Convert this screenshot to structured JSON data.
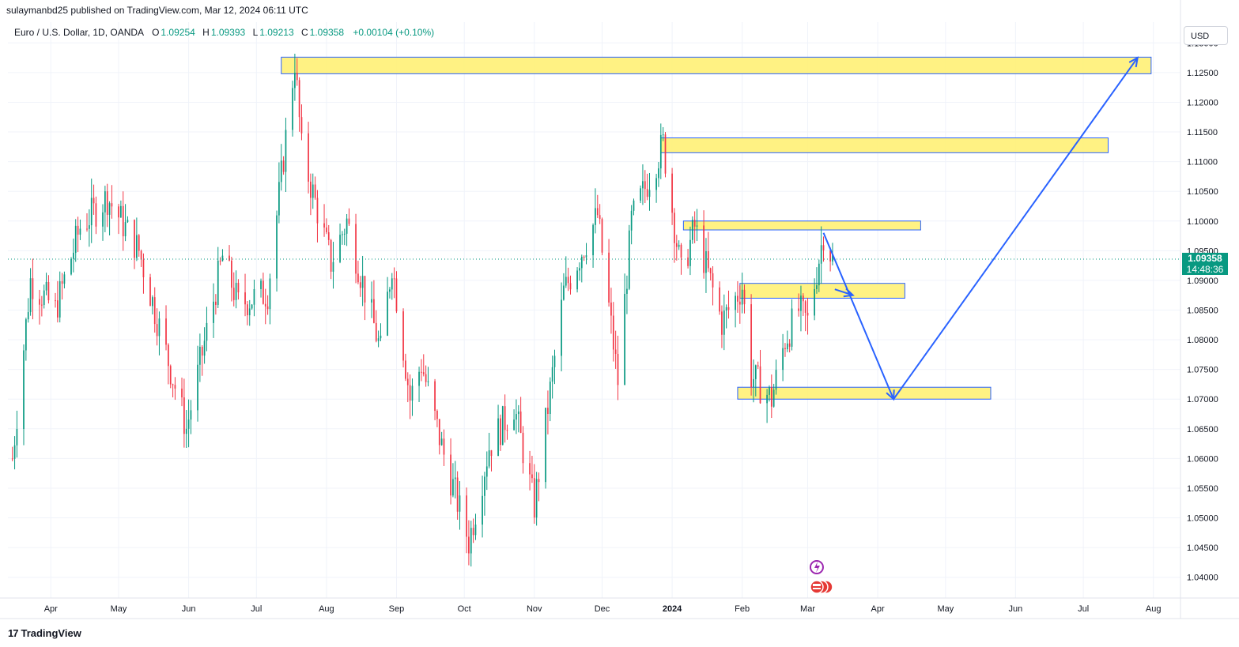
{
  "header": {
    "publisher_line": "sulaymanbd25 published on TradingView.com, Mar 12, 2024 06:11 UTC"
  },
  "legend": {
    "symbol": "Euro / U.S. Dollar, 1D, OANDA",
    "open_label": "O",
    "open": "1.09254",
    "high_label": "H",
    "high": "1.09393",
    "low_label": "L",
    "low": "1.09213",
    "close_label": "C",
    "close": "1.09358",
    "change": "+0.00104 (+0.10%)"
  },
  "currency_button": "USD",
  "price_tag": {
    "price": "1.09358",
    "countdown": "14:48:36"
  },
  "branding": {
    "logo": "17",
    "name": "TradingView"
  },
  "colors": {
    "up": "#089981",
    "down": "#f23645",
    "zone_fill": "#fff176",
    "zone_border": "#2962ff",
    "arrow": "#2962ff",
    "grid": "#f0f3fa",
    "axis_text": "#131722"
  },
  "chart_data": {
    "type": "candlestick",
    "symbol": "EUR/USD",
    "interval": "1D",
    "ylim": [
      1.0365,
      1.1335
    ],
    "y_ticks": [
      "1.13000",
      "1.12500",
      "1.12000",
      "1.11500",
      "1.11000",
      "1.10500",
      "1.10000",
      "1.09500",
      "1.09000",
      "1.08500",
      "1.08000",
      "1.07500",
      "1.07000",
      "1.06500",
      "1.06000",
      "1.05500",
      "1.05000",
      "1.04500",
      "1.04000"
    ],
    "x_ticks": [
      {
        "label": "Apr",
        "date": "2023-04-01"
      },
      {
        "label": "May",
        "date": "2023-05-01"
      },
      {
        "label": "Jun",
        "date": "2023-06-01"
      },
      {
        "label": "Jul",
        "date": "2023-07-01"
      },
      {
        "label": "Aug",
        "date": "2023-08-01"
      },
      {
        "label": "Sep",
        "date": "2023-09-01"
      },
      {
        "label": "Oct",
        "date": "2023-10-01"
      },
      {
        "label": "Nov",
        "date": "2023-11-01"
      },
      {
        "label": "Dec",
        "date": "2023-12-01"
      },
      {
        "label": "2024",
        "date": "2024-01-01",
        "bold": true
      },
      {
        "label": "Feb",
        "date": "2024-02-01"
      },
      {
        "label": "Mar",
        "date": "2024-03-01"
      },
      {
        "label": "Apr",
        "date": "2024-04-01"
      },
      {
        "label": "May",
        "date": "2024-05-01"
      },
      {
        "label": "Jun",
        "date": "2024-06-01"
      },
      {
        "label": "Jul",
        "date": "2024-07-01"
      },
      {
        "label": "Aug",
        "date": "2024-08-01"
      }
    ],
    "last_price": 1.09358,
    "price_path": [
      [
        "2023-03-15",
        1.06
      ],
      [
        "2023-03-23",
        1.09
      ],
      [
        "2023-04-03",
        1.085
      ],
      [
        "2023-04-14",
        1.099
      ],
      [
        "2023-04-26",
        1.104
      ],
      [
        "2023-05-10",
        1.095
      ],
      [
        "2023-05-31",
        1.065
      ],
      [
        "2023-06-16",
        1.094
      ],
      [
        "2023-06-23",
        1.086
      ],
      [
        "2023-07-06",
        1.088
      ],
      [
        "2023-07-18",
        1.127
      ],
      [
        "2023-07-21",
        1.112
      ],
      [
        "2023-08-03",
        1.093
      ],
      [
        "2023-08-10",
        1.1
      ],
      [
        "2023-08-25",
        1.078
      ],
      [
        "2023-08-30",
        1.093
      ],
      [
        "2023-09-07",
        1.07
      ],
      [
        "2023-09-12",
        1.076
      ],
      [
        "2023-09-21",
        1.062
      ],
      [
        "2023-10-03",
        1.046
      ],
      [
        "2023-10-12",
        1.062
      ],
      [
        "2023-10-23",
        1.069
      ],
      [
        "2023-11-01",
        1.052
      ],
      [
        "2023-11-14",
        1.088
      ],
      [
        "2023-11-29",
        1.101
      ],
      [
        "2023-12-08",
        1.073
      ],
      [
        "2023-12-14",
        1.1
      ],
      [
        "2023-12-28",
        1.113
      ],
      [
        "2024-01-05",
        1.091
      ],
      [
        "2024-01-11",
        1.099
      ],
      [
        "2024-01-23",
        1.083
      ],
      [
        "2024-02-01",
        1.089
      ],
      [
        "2024-02-05",
        1.074
      ],
      [
        "2024-02-14",
        1.07
      ],
      [
        "2024-02-20",
        1.08
      ],
      [
        "2024-02-26",
        1.085
      ],
      [
        "2024-03-01",
        1.083
      ],
      [
        "2024-03-08",
        1.098
      ],
      [
        "2024-03-12",
        1.09358
      ]
    ],
    "zones": [
      {
        "start": "2023-07-12",
        "end": "2024-07-31",
        "low": 1.1248,
        "high": 1.1276
      },
      {
        "start": "2023-12-27",
        "end": "2024-07-12",
        "low": 1.1115,
        "high": 1.114
      },
      {
        "start": "2024-01-06",
        "end": "2024-04-20",
        "low": 1.0985,
        "high": 1.1
      },
      {
        "start": "2024-01-31",
        "end": "2024-04-13",
        "low": 1.087,
        "high": 1.0895
      },
      {
        "start": "2024-01-30",
        "end": "2024-05-21",
        "low": 1.07,
        "high": 1.072
      }
    ],
    "projection_path": [
      [
        "2024-03-08",
        1.098
      ],
      [
        "2024-03-21",
        1.0875
      ],
      [
        "2024-04-08",
        1.07
      ],
      [
        "2024-07-25",
        1.1275
      ]
    ],
    "projection_side_arrow": [
      [
        "2024-03-13",
        1.0885
      ],
      [
        "2024-03-21",
        1.0875
      ]
    ]
  }
}
